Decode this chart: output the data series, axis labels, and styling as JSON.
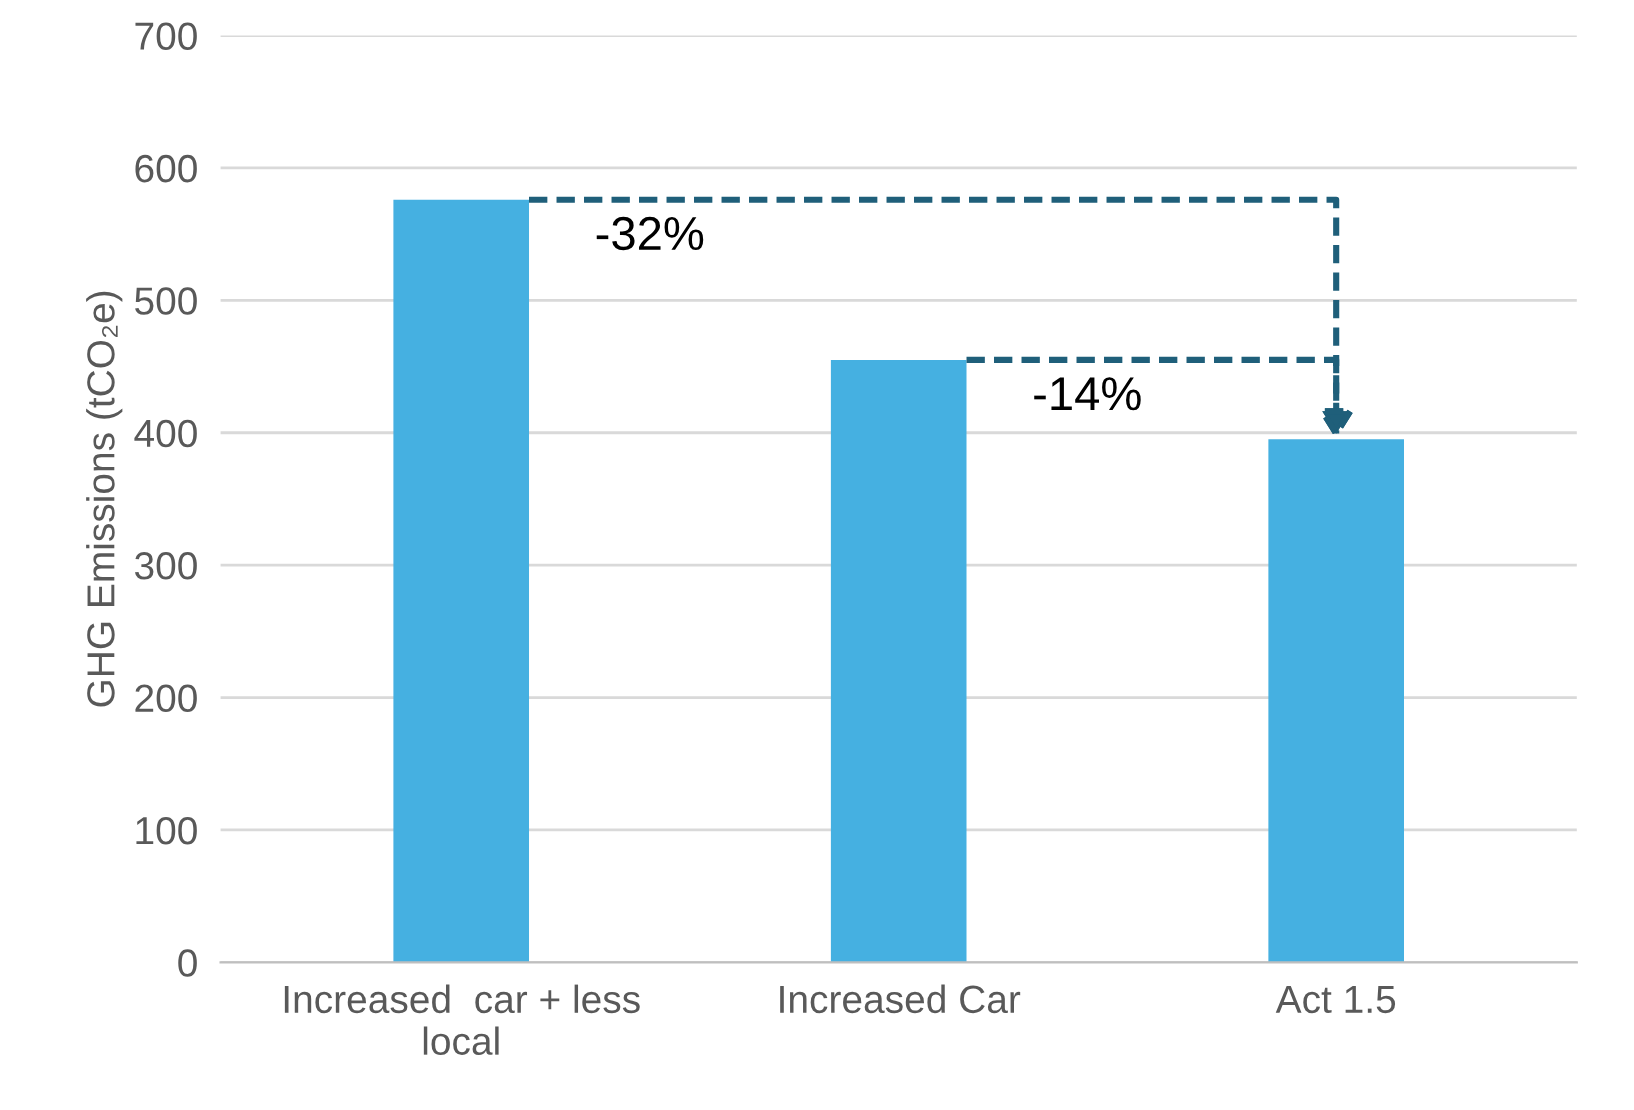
{
  "chart_data": {
    "type": "bar",
    "categories": [
      "Increased  car + less\nlocal",
      "Increased Car",
      "Act 1.5"
    ],
    "values": [
      576,
      455,
      395
    ],
    "color": "#45b0e1",
    "ylabel": "GHG Emissions (tCO₂e)",
    "ylim": [
      0,
      700
    ],
    "yticks": [
      0,
      100,
      200,
      300,
      400,
      500,
      600,
      700
    ],
    "grid": "y",
    "annotations": [
      "-32%",
      "-14%"
    ]
  }
}
